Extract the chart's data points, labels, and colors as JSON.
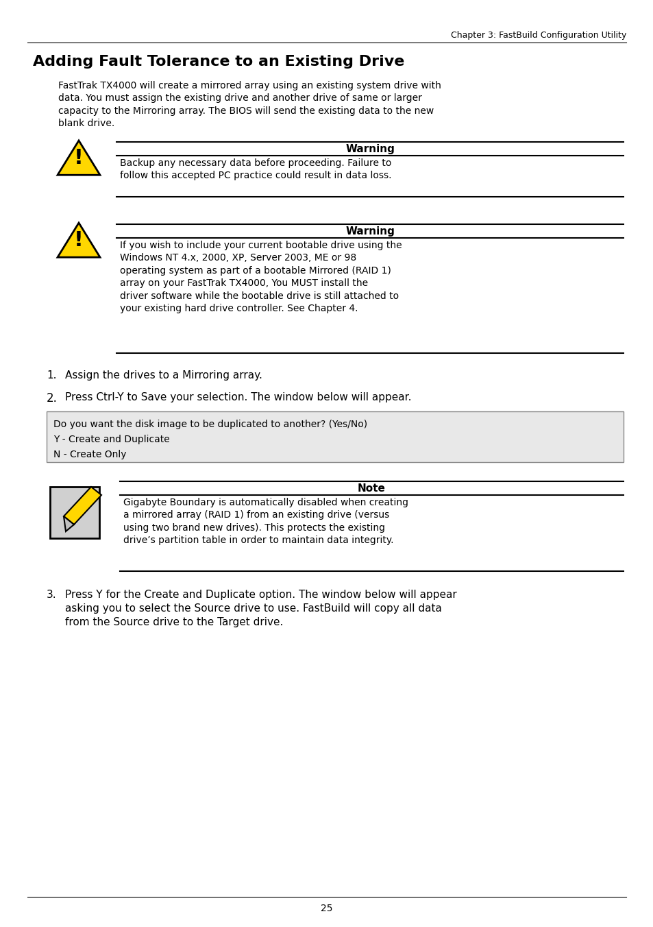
{
  "header_text": "Chapter 3: FastBuild Configuration Utility",
  "page_number": "25",
  "title": "Adding Fault Tolerance to an Existing Drive",
  "intro_text": "FastTrak TX4000 will create a mirrored array using an existing system drive with\ndata. You must assign the existing drive and another drive of same or larger\ncapacity to the Mirroring array. The BIOS will send the existing data to the new\nblank drive.",
  "warning1_title": "Warning",
  "warning1_text": "Backup any necessary data before proceeding. Failure to\nfollow this accepted PC practice could result in data loss.",
  "warning2_title": "Warning",
  "warning2_text": "If you wish to include your current bootable drive using the\nWindows NT 4.x, 2000, XP, Server 2003, ME or 98\noperating system as part of a bootable Mirrored (RAID 1)\narray on your FastTrak TX4000, You MUST install the\ndriver software while the bootable drive is still attached to\nyour existing hard drive controller. See Chapter 4.",
  "step1": "Assign the drives to a Mirroring array.",
  "step2": "Press Ctrl-Y to Save your selection. The window below will appear.",
  "dialog_lines": [
    "Do you want the disk image to be duplicated to another? (Yes/No)",
    "Y - Create and Duplicate",
    "N - Create Only"
  ],
  "note_title": "Note",
  "note_text": "Gigabyte Boundary is automatically disabled when creating\na mirrored array (RAID 1) from an existing drive (versus\nusing two brand new drives). This protects the existing\ndrive’s partition table in order to maintain data integrity.",
  "step3": "Press Y for the Create and Duplicate option. The window below will appear\nasking you to select the Source drive to use. FastBuild will copy all data\nfrom the Source drive to the Target drive.",
  "bg_color": "#ffffff",
  "text_color": "#000000",
  "dialog_bg": "#e8e8e8",
  "warning_yellow": "#FFD700",
  "warning_black": "#000000"
}
